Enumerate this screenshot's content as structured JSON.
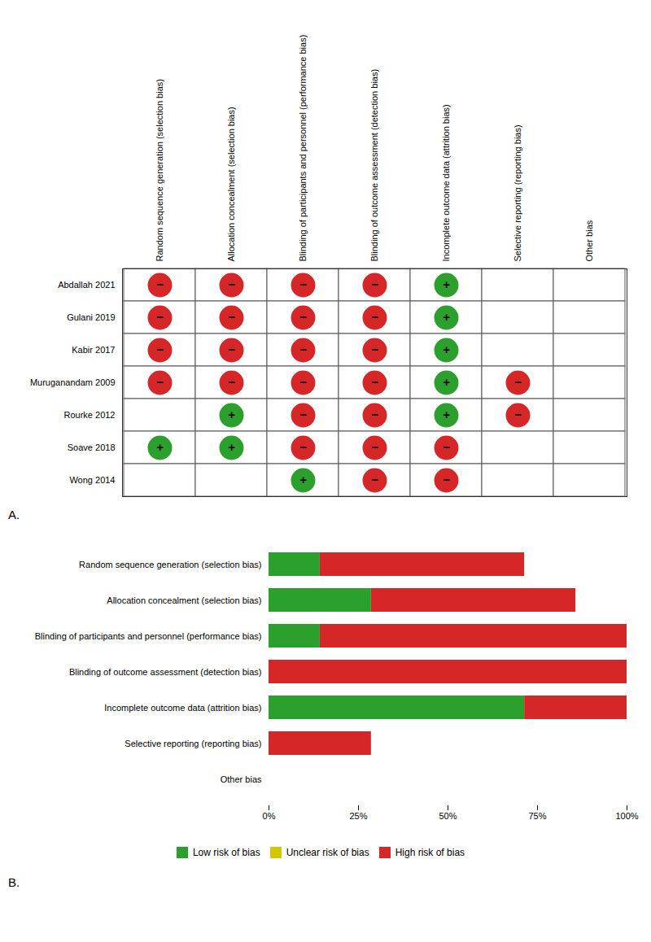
{
  "chart_data": [
    {
      "type": "grid",
      "title": "A.",
      "rows": [
        "Abdallah 2021",
        "Gulani 2019",
        "Kabir 2017",
        "Muruganandam 2009",
        "Rourke 2012",
        "Soave 2018",
        "Wong 2014"
      ],
      "columns": [
        "Random sequence generation (selection bias)",
        "Allocation concealment (selection bias)",
        "Blinding of participants and personnel (performance bias)",
        "Blinding of outcome assessment (detection bias)",
        "Incomplete outcome data (attrition bias)",
        "Selective reporting (reporting bias)",
        "Other bias"
      ],
      "cells": [
        [
          "−",
          "−",
          "−",
          "−",
          "+",
          null,
          null
        ],
        [
          "−",
          "−",
          "−",
          "−",
          "+",
          null,
          null
        ],
        [
          "−",
          "−",
          "−",
          "−",
          "+",
          null,
          null
        ],
        [
          "−",
          "−",
          "−",
          "−",
          "+",
          "−",
          null
        ],
        [
          null,
          "+",
          "−",
          "−",
          "+",
          "−",
          null
        ],
        [
          "+",
          "+",
          "−",
          "−",
          "−",
          null,
          null
        ],
        [
          null,
          null,
          "+",
          "−",
          "−",
          null,
          null
        ]
      ],
      "symbols": [
        {
          "symbol": "+",
          "color": "#2ca02c"
        },
        {
          "symbol": "−",
          "color": "#d62728"
        }
      ]
    },
    {
      "type": "bar",
      "title": "B.",
      "orientation": "horizontal",
      "stacked": true,
      "categories": [
        "Random sequence generation (selection bias)",
        "Allocation concealment (selection bias)",
        "Blinding of participants and personnel (performance bias)",
        "Blinding of outcome assessment (detection bias)",
        "Incomplete outcome data (attrition bias)",
        "Selective reporting (reporting bias)",
        "Other bias"
      ],
      "series": [
        {
          "name": "Low risk of bias",
          "color": "#2ca02c",
          "values": [
            14.3,
            28.6,
            14.3,
            0.0,
            71.4,
            0.0,
            0.0
          ]
        },
        {
          "name": "Unclear risk of bias",
          "color": "#d4c700",
          "values": [
            0.0,
            0.0,
            0.0,
            0.0,
            0.0,
            0.0,
            0.0
          ]
        },
        {
          "name": "High risk of bias",
          "color": "#d62728",
          "values": [
            57.1,
            57.1,
            85.7,
            100.0,
            28.6,
            28.6,
            0.0
          ]
        }
      ],
      "xlim": [
        0,
        100
      ],
      "xticks": [
        {
          "value": 0,
          "label": "0%"
        },
        {
          "value": 25,
          "label": "25%"
        },
        {
          "value": 50,
          "label": "50%"
        },
        {
          "value": 75,
          "label": "75%"
        },
        {
          "value": 100,
          "label": "100%"
        }
      ],
      "grid": false,
      "legend": "bottom"
    }
  ]
}
